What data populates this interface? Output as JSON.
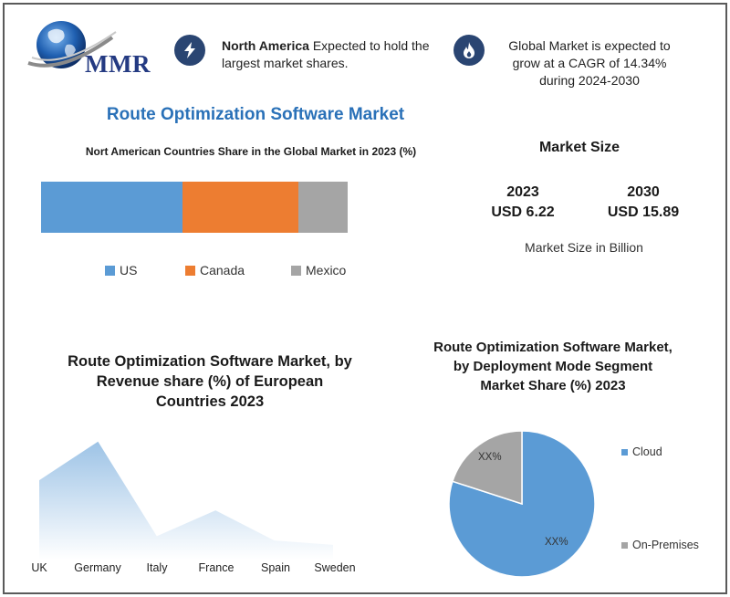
{
  "header": {
    "logo_text": "MMR",
    "na_bold": "North America",
    "na_text": " Expected to hold the largest market shares.",
    "cagr_text": "Global Market is expected to grow at a CAGR of 14.34% during 2024-2030"
  },
  "main_title": "Route Optimization Software Market",
  "market_size": {
    "title": "Market Size",
    "y1_label": "2023",
    "y1_value": "USD 6.22",
    "y2_label": "2030",
    "y2_value": "USD 15.89",
    "unit_note": "Market Size in Billion"
  },
  "colors": {
    "us": "#5b9bd5",
    "canada": "#ed7d31",
    "mexico": "#a5a5a5",
    "area": "#9dc3e6",
    "cloud": "#5b9bd5",
    "onprem": "#a5a5a5",
    "icon_bg": "#2a4572"
  },
  "chart_data": [
    {
      "type": "bar",
      "stacked": true,
      "orientation": "horizontal",
      "title": "Nort American Countries Share in the Global Market in 2023 (%)",
      "series": [
        {
          "name": "US",
          "value": 46
        },
        {
          "name": "Canada",
          "value": 38
        },
        {
          "name": "Mexico",
          "value": 16
        }
      ],
      "legend_placement": "bottom"
    },
    {
      "type": "area",
      "title": "Route Optimization Software Market, by Revenue share (%) of European Countries 2023",
      "categories": [
        "UK",
        "Germany",
        "Italy",
        "France",
        "Spain",
        "Sweden"
      ],
      "values": [
        30,
        48,
        4,
        16,
        2,
        0
      ],
      "ylim": [
        -6,
        50
      ],
      "grid": false
    },
    {
      "type": "pie",
      "title": "Route Optimization Software Market, by  Deployment Mode Segment Market Share (%) 2023",
      "slices": [
        {
          "name": "Cloud",
          "value": 80,
          "label": "XX%"
        },
        {
          "name": "On-Premises",
          "value": 20,
          "label": "XX%"
        }
      ],
      "legend_placement": "right"
    }
  ]
}
